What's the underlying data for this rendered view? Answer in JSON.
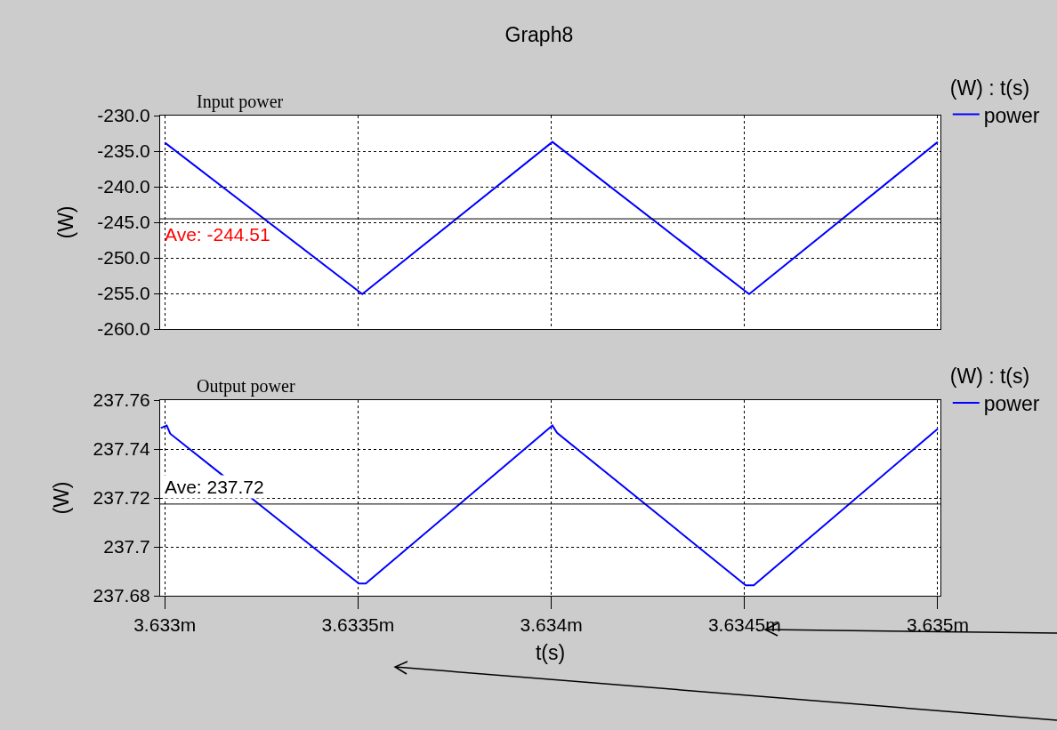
{
  "chart_data": [
    {
      "type": "line",
      "title": "Graph8",
      "subtitle": "Input power",
      "ylabel": "(W)",
      "legend_title": "(W) : t(s)",
      "legend": "top right",
      "grid": true,
      "tick_labels": "y",
      "xlim": [
        3.632988,
        3.635007
      ],
      "ylim": [
        -260,
        -230
      ],
      "yticks": [
        {
          "value": -230,
          "label": "-230.0"
        },
        {
          "value": -235,
          "label": "-235.0"
        },
        {
          "value": -240,
          "label": "-240.0"
        },
        {
          "value": -245,
          "label": "-245.0"
        },
        {
          "value": -250,
          "label": "-250.0"
        },
        {
          "value": -255,
          "label": "-255.0"
        },
        {
          "value": -260,
          "label": "-260.0"
        }
      ],
      "xticks": [
        {
          "value": 3.633,
          "label": null
        },
        {
          "value": 3.6335,
          "label": null
        },
        {
          "value": 3.634,
          "label": null
        },
        {
          "value": 3.6345,
          "label": null
        },
        {
          "value": 3.635,
          "label": null
        }
      ],
      "series": [
        {
          "name": "power",
          "color": "#0000ff",
          "x": [
            3.633,
            3.633511,
            3.634003,
            3.634512,
            3.635
          ],
          "values": [
            -233.8,
            -255.1,
            -233.7,
            -255.1,
            -233.7
          ]
        }
      ],
      "ref_lines": [
        {
          "axis": "y",
          "value": -244.51,
          "label": "Ave: -244.51",
          "color": "#000000"
        }
      ]
    },
    {
      "type": "line",
      "subtitle": "Output power",
      "ylabel": "(W)",
      "xlabel": "t(s)",
      "legend_title": "(W) : t(s)",
      "legend": "top right",
      "grid": true,
      "xlim": [
        3.632988,
        3.635007
      ],
      "ylim": [
        237.68,
        237.76
      ],
      "yticks": [
        237.68,
        237.7,
        237.72,
        237.74,
        237.76
      ],
      "xticks": [
        {
          "value": 3.633,
          "label": "3.633m"
        },
        {
          "value": 3.6335,
          "label": "3.6335m"
        },
        {
          "value": 3.634,
          "label": "3.634m"
        },
        {
          "value": 3.6345,
          "label": "3.6345m"
        },
        {
          "value": 3.635,
          "label": "3.635m"
        }
      ],
      "series": [
        {
          "name": "power",
          "color": "#0000ff",
          "x": [
            3.63299,
            3.633005,
            3.633014,
            3.633502,
            3.63352,
            3.634003,
            3.634015,
            3.634503,
            3.634524,
            3.635
          ],
          "values": [
            237.7486,
            237.7496,
            237.7463,
            237.685,
            237.685,
            237.7496,
            237.7466,
            237.6843,
            237.6843,
            237.7483
          ]
        }
      ],
      "ref_lines": [
        {
          "axis": "y",
          "value": 237.7175,
          "label": "Ave: 237.72",
          "color": "#000000"
        }
      ]
    }
  ]
}
